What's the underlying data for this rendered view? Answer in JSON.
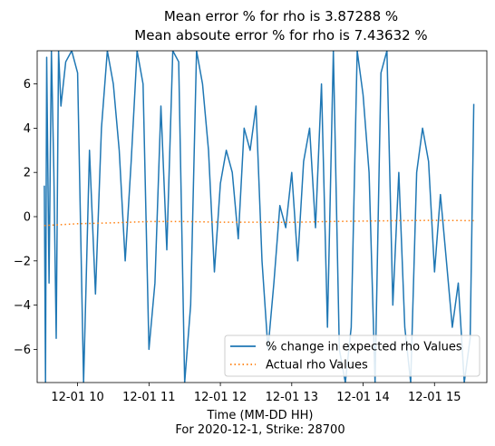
{
  "chart_data": {
    "type": "line",
    "title_lines": [
      "Mean error % for rho is 3.87288 %",
      "Mean absoute error % for rho is 7.43632 %"
    ],
    "xlabel_lines": [
      "Time (MM-DD HH)",
      "For 2020-12-1, Strike: 28700"
    ],
    "ylabel": "",
    "x_range": [
      "2020-12-01 09:26",
      "2020-12-01 15:44"
    ],
    "ylim": [
      -7.5,
      7.5
    ],
    "yticks": [
      -6,
      -4,
      -2,
      0,
      2,
      4,
      6
    ],
    "xticks": [
      {
        "value": "2020-12-01 10:00",
        "label": "12-01 10"
      },
      {
        "value": "2020-12-01 11:00",
        "label": "12-01 11"
      },
      {
        "value": "2020-12-01 12:00",
        "label": "12-01 12"
      },
      {
        "value": "2020-12-01 13:00",
        "label": "12-01 13"
      },
      {
        "value": "2020-12-01 14:00",
        "label": "12-01 14"
      },
      {
        "value": "2020-12-01 15:00",
        "label": "12-01 15"
      }
    ],
    "grid": false,
    "legend_position": "lower right",
    "series": [
      {
        "name": "% change in expected rho Values",
        "color": "#1f77b4",
        "style": "solid",
        "x": [
          "2020-12-01 09:32",
          "2020-12-01 09:33",
          "2020-12-01 09:34",
          "2020-12-01 09:36",
          "2020-12-01 09:38",
          "2020-12-01 09:40",
          "2020-12-01 09:42",
          "2020-12-01 09:44",
          "2020-12-01 09:46",
          "2020-12-01 09:50",
          "2020-12-01 09:55",
          "2020-12-01 10:00",
          "2020-12-01 10:05",
          "2020-12-01 10:10",
          "2020-12-01 10:15",
          "2020-12-01 10:20",
          "2020-12-01 10:25",
          "2020-12-01 10:30",
          "2020-12-01 10:35",
          "2020-12-01 10:40",
          "2020-12-01 10:45",
          "2020-12-01 10:50",
          "2020-12-01 10:55",
          "2020-12-01 11:00",
          "2020-12-01 11:05",
          "2020-12-01 11:10",
          "2020-12-01 11:15",
          "2020-12-01 11:20",
          "2020-12-01 11:25",
          "2020-12-01 11:30",
          "2020-12-01 11:35",
          "2020-12-01 11:40",
          "2020-12-01 11:45",
          "2020-12-01 11:50",
          "2020-12-01 11:55",
          "2020-12-01 12:00",
          "2020-12-01 12:05",
          "2020-12-01 12:10",
          "2020-12-01 12:15",
          "2020-12-01 12:20",
          "2020-12-01 12:25",
          "2020-12-01 12:30",
          "2020-12-01 12:35",
          "2020-12-01 12:40",
          "2020-12-01 12:45",
          "2020-12-01 12:50",
          "2020-12-01 12:55",
          "2020-12-01 13:00",
          "2020-12-01 13:05",
          "2020-12-01 13:10",
          "2020-12-01 13:15",
          "2020-12-01 13:20",
          "2020-12-01 13:25",
          "2020-12-01 13:30",
          "2020-12-01 13:35",
          "2020-12-01 13:40",
          "2020-12-01 13:45",
          "2020-12-01 13:50",
          "2020-12-01 13:55",
          "2020-12-01 14:00",
          "2020-12-01 14:05",
          "2020-12-01 14:10",
          "2020-12-01 14:15",
          "2020-12-01 14:20",
          "2020-12-01 14:25",
          "2020-12-01 14:30",
          "2020-12-01 14:35",
          "2020-12-01 14:40",
          "2020-12-01 14:45",
          "2020-12-01 14:50",
          "2020-12-01 14:55",
          "2020-12-01 15:00",
          "2020-12-01 15:05",
          "2020-12-01 15:10",
          "2020-12-01 15:15",
          "2020-12-01 15:20",
          "2020-12-01 15:25",
          "2020-12-01 15:30",
          "2020-12-01 15:33"
        ],
        "y": [
          1.4,
          -7.5,
          7.2,
          -3.0,
          7.5,
          2.0,
          -5.5,
          7.5,
          5.0,
          7.0,
          7.5,
          6.5,
          -7.5,
          3.0,
          -3.5,
          4.0,
          7.5,
          6.0,
          3.0,
          -2.0,
          2.5,
          7.5,
          6.0,
          -6.0,
          -3.0,
          5.0,
          -1.5,
          7.5,
          7.0,
          -7.5,
          -4.0,
          7.5,
          6.0,
          3.0,
          -2.5,
          1.5,
          3.0,
          2.0,
          -1.0,
          4.0,
          3.0,
          5.0,
          -2.0,
          -6.0,
          -3.0,
          0.5,
          -0.5,
          2.0,
          -2.0,
          2.5,
          4.0,
          -0.5,
          6.0,
          -5.0,
          7.5,
          -6.0,
          -7.5,
          -5.0,
          7.5,
          5.5,
          2.0,
          -7.5,
          6.5,
          7.5,
          -4.0,
          2.0,
          -5.0,
          -7.5,
          2.0,
          4.0,
          2.5,
          -2.5,
          1.0,
          -2.0,
          -5.0,
          -3.0,
          -7.5,
          -5.5,
          5.1
        ]
      },
      {
        "name": "Actual rho Values",
        "color": "#ff7f0e",
        "style": "dotted",
        "x": [
          "2020-12-01 09:32",
          "2020-12-01 10:00",
          "2020-12-01 10:30",
          "2020-12-01 11:00",
          "2020-12-01 11:30",
          "2020-12-01 12:00",
          "2020-12-01 12:30",
          "2020-12-01 13:00",
          "2020-12-01 13:30",
          "2020-12-01 14:00",
          "2020-12-01 14:30",
          "2020-12-01 15:00",
          "2020-12-01 15:33"
        ],
        "y": [
          -0.4,
          -0.32,
          -0.28,
          -0.22,
          -0.22,
          -0.25,
          -0.25,
          -0.26,
          -0.22,
          -0.2,
          -0.18,
          -0.17,
          -0.18
        ]
      }
    ]
  }
}
